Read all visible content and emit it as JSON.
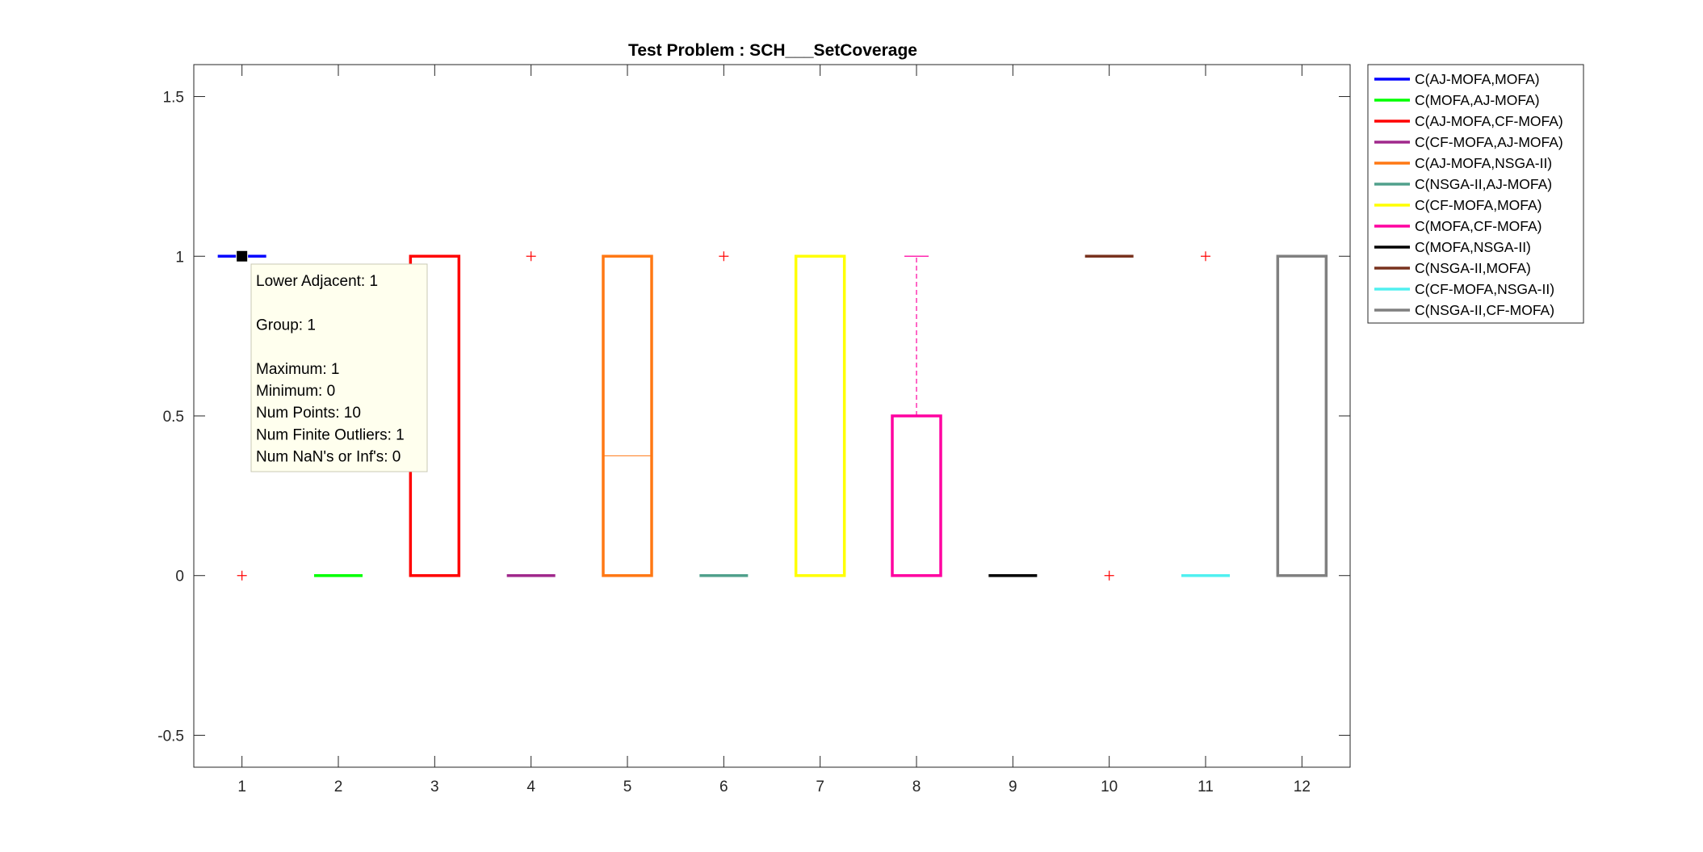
{
  "chart_data": {
    "type": "box",
    "title": "Test Problem : SCH___SetCoverage",
    "xlabel": "",
    "ylabel": "",
    "xlim": [
      0.5,
      12.5
    ],
    "ylim": [
      -0.6,
      1.6
    ],
    "xticks": [
      "1",
      "2",
      "3",
      "4",
      "5",
      "6",
      "7",
      "8",
      "9",
      "10",
      "11",
      "12"
    ],
    "yticks": [
      {
        "value": -0.5,
        "label": "-0.5"
      },
      {
        "value": 0,
        "label": "0"
      },
      {
        "value": 0.5,
        "label": "0.5"
      },
      {
        "value": 1,
        "label": "1"
      },
      {
        "value": 1.5,
        "label": "1.5"
      }
    ],
    "grid": false,
    "legend_position": "outside-right",
    "series": [
      {
        "name": "C(AJ-MOFA,MOFA)",
        "color": "#0000ff",
        "x": 1,
        "q1": 1,
        "median": 1,
        "q3": 1,
        "whisker_low": 1,
        "whisker_high": 1,
        "outliers": [
          0
        ]
      },
      {
        "name": "C(MOFA,AJ-MOFA)",
        "color": "#00ff00",
        "x": 2,
        "q1": 0,
        "median": 0,
        "q3": 0,
        "whisker_low": 0,
        "whisker_high": 0,
        "outliers": []
      },
      {
        "name": "C(AJ-MOFA,CF-MOFA)",
        "color": "#ff0000",
        "x": 3,
        "q1": 0,
        "median": 0,
        "q3": 1,
        "whisker_low": 0,
        "whisker_high": 1,
        "outliers": []
      },
      {
        "name": "C(CF-MOFA,AJ-MOFA)",
        "color": "#a0288c",
        "x": 4,
        "q1": 0,
        "median": 0,
        "q3": 0,
        "whisker_low": 0,
        "whisker_high": 0,
        "outliers": [
          1
        ]
      },
      {
        "name": "C(AJ-MOFA,NSGA-II)",
        "color": "#ff7814",
        "x": 5,
        "q1": 0,
        "median": 0.375,
        "q3": 1,
        "whisker_low": 0,
        "whisker_high": 1,
        "outliers": []
      },
      {
        "name": "C(NSGA-II,AJ-MOFA)",
        "color": "#50a08c",
        "x": 6,
        "q1": 0,
        "median": 0,
        "q3": 0,
        "whisker_low": 0,
        "whisker_high": 0,
        "outliers": [
          1
        ]
      },
      {
        "name": "C(CF-MOFA,MOFA)",
        "color": "#ffff00",
        "x": 7,
        "q1": 0,
        "median": 0,
        "q3": 1,
        "whisker_low": 0,
        "whisker_high": 1,
        "outliers": []
      },
      {
        "name": "C(MOFA,CF-MOFA)",
        "color": "#ff00a0",
        "x": 8,
        "q1": 0,
        "median": 0,
        "q3": 0.5,
        "whisker_low": 0,
        "whisker_high": 1,
        "outliers": []
      },
      {
        "name": "C(MOFA,NSGA-II)",
        "color": "#000000",
        "x": 9,
        "q1": 0,
        "median": 0,
        "q3": 0,
        "whisker_low": 0,
        "whisker_high": 0,
        "outliers": []
      },
      {
        "name": "C(NSGA-II,MOFA)",
        "color": "#78321e",
        "x": 10,
        "q1": 1,
        "median": 1,
        "q3": 1,
        "whisker_low": 1,
        "whisker_high": 1,
        "outliers": [
          0
        ]
      },
      {
        "name": "C(CF-MOFA,NSGA-II)",
        "color": "#50f0f0",
        "x": 11,
        "q1": 0,
        "median": 0,
        "q3": 0,
        "whisker_low": 0,
        "whisker_high": 0,
        "outliers": [
          1
        ]
      },
      {
        "name": "C(NSGA-II,CF-MOFA)",
        "color": "#808080",
        "x": 12,
        "q1": 0,
        "median": 0,
        "q3": 1,
        "whisker_low": 0,
        "whisker_high": 1,
        "outliers": []
      }
    ],
    "outlier_color": "#ff0000",
    "datatip": {
      "anchor_x": 1,
      "anchor_y": 1,
      "lines": [
        "Lower Adjacent: 1",
        "",
        "Group: 1",
        "",
        "Maximum: 1",
        "Minimum: 0",
        "Num Points: 10",
        "Num Finite Outliers: 1",
        "Num NaN's or Inf's: 0"
      ]
    }
  }
}
